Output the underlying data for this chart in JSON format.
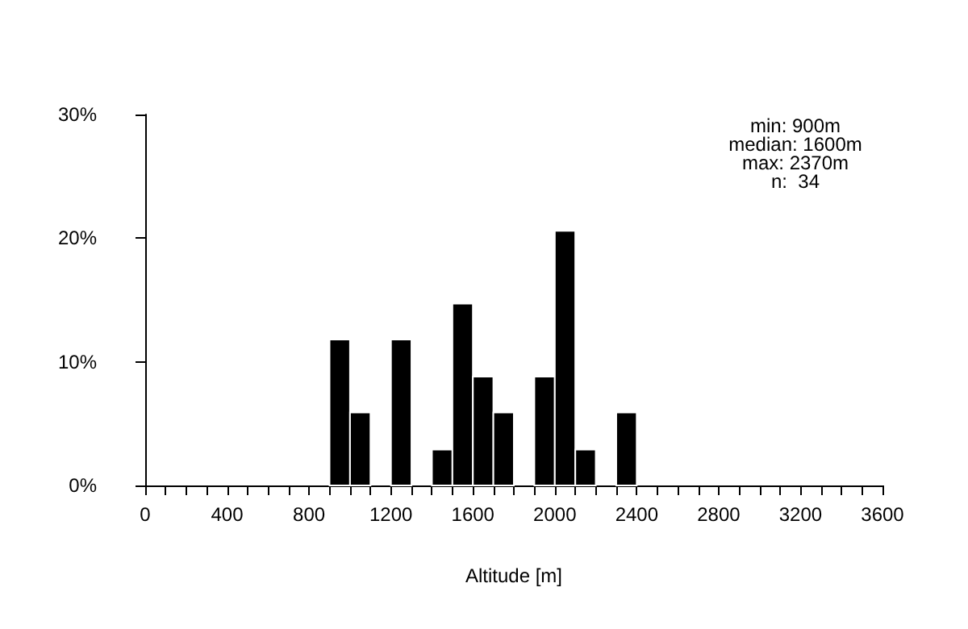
{
  "chart_data": {
    "type": "histogram",
    "xlabel": "Altitude [m]",
    "bins": [
      900,
      1000,
      1100,
      1200,
      1300,
      1400,
      1500,
      1600,
      1700,
      1800,
      1900,
      2000,
      2100,
      2200,
      2300,
      2400
    ],
    "values": [
      11.8,
      5.9,
      0,
      11.8,
      0,
      2.9,
      14.7,
      8.8,
      5.9,
      0,
      8.8,
      20.6,
      2.9,
      0,
      5.9
    ],
    "color": "#000000",
    "xlim": [
      0,
      3600
    ],
    "xticks": [
      0,
      {
        "value": 100,
        "label": null
      },
      {
        "value": 200,
        "label": null
      },
      {
        "value": 300,
        "label": null
      },
      400,
      {
        "value": 500,
        "label": null
      },
      {
        "value": 600,
        "label": null
      },
      {
        "value": 700,
        "label": null
      },
      800,
      {
        "value": 900,
        "label": null
      },
      {
        "value": 1000,
        "label": null
      },
      {
        "value": 1100,
        "label": null
      },
      1200,
      {
        "value": 1300,
        "label": null
      },
      {
        "value": 1400,
        "label": null
      },
      {
        "value": 1500,
        "label": null
      },
      1600,
      {
        "value": 1700,
        "label": null
      },
      {
        "value": 1800,
        "label": null
      },
      {
        "value": 1900,
        "label": null
      },
      2000,
      {
        "value": 2100,
        "label": null
      },
      {
        "value": 2200,
        "label": null
      },
      {
        "value": 2300,
        "label": null
      },
      2400,
      {
        "value": 2500,
        "label": null
      },
      {
        "value": 2600,
        "label": null
      },
      {
        "value": 2700,
        "label": null
      },
      2800,
      {
        "value": 2900,
        "label": null
      },
      {
        "value": 3000,
        "label": null
      },
      {
        "value": 3100,
        "label": null
      },
      3200,
      {
        "value": 3300,
        "label": null
      },
      {
        "value": 3400,
        "label": null
      },
      {
        "value": 3500,
        "label": null
      },
      3600
    ],
    "ylim": [
      0,
      30
    ],
    "yticks": [
      {
        "value": 0,
        "label": "0%"
      },
      {
        "value": 10,
        "label": "10%"
      },
      {
        "value": 20,
        "label": "20%"
      },
      {
        "value": 30,
        "label": "30%"
      }
    ],
    "grid": false,
    "annotations": [
      "min: 900m",
      "median: 1600m",
      "max: 2370m",
      "n:  34"
    ]
  }
}
